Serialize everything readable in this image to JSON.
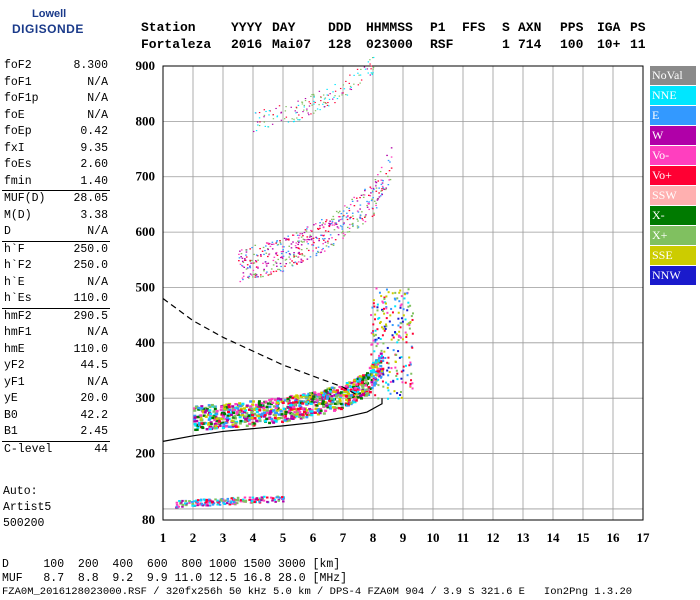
{
  "logo": {
    "line1": "Lowell",
    "line2": "DIGISONDE"
  },
  "header": {
    "labels": [
      "Station",
      "YYYY",
      "DAY",
      "DDD",
      "HHMMSS",
      "P1",
      "FFS",
      "S",
      "AXN",
      "PPS",
      "IGA",
      "PS"
    ],
    "values": [
      "Fortaleza",
      "2016",
      "Mai07",
      "128",
      "023000",
      "RSF",
      "1",
      "714",
      "100",
      "10+",
      "11"
    ]
  },
  "params": [
    {
      "k": "foF2",
      "v": "8.300"
    },
    {
      "k": "foF1",
      "v": "N/A"
    },
    {
      "k": "foF1p",
      "v": "N/A"
    },
    {
      "k": "foE",
      "v": "N/A"
    },
    {
      "k": "foEp",
      "v": "0.42"
    },
    {
      "k": "fxI",
      "v": "9.35"
    },
    {
      "k": "foEs",
      "v": "2.60"
    },
    {
      "k": "fmin",
      "v": "1.40"
    },
    {
      "k": "MUF(D)",
      "v": "28.05",
      "sep": true
    },
    {
      "k": "M(D)",
      "v": "3.38"
    },
    {
      "k": "D",
      "v": "N/A"
    },
    {
      "k": "h`F",
      "v": "250.0",
      "sep": true
    },
    {
      "k": "h`F2",
      "v": "250.0"
    },
    {
      "k": "h`E",
      "v": "N/A"
    },
    {
      "k": "h`Es",
      "v": "110.0"
    },
    {
      "k": "hmF2",
      "v": "290.5",
      "sep": true
    },
    {
      "k": "hmF1",
      "v": "N/A"
    },
    {
      "k": "hmE",
      "v": "110.0"
    },
    {
      "k": "yF2",
      "v": "44.5"
    },
    {
      "k": "yF1",
      "v": "N/A"
    },
    {
      "k": "yE",
      "v": "20.0"
    },
    {
      "k": "B0",
      "v": "42.2"
    },
    {
      "k": "B1",
      "v": "2.45"
    },
    {
      "k": "C-level",
      "v": "44",
      "sep": true
    }
  ],
  "auto": {
    "line1": "Auto:",
    "line2": "Artist5",
    "line3": "500200"
  },
  "legend": [
    {
      "name": "NoVal",
      "color": "#8a8a8a"
    },
    {
      "name": "NNE",
      "color": "#00e6ff"
    },
    {
      "name": "E",
      "color": "#3399ff"
    },
    {
      "name": "W",
      "color": "#b000a8"
    },
    {
      "name": "Vo-",
      "color": "#ff3fbf"
    },
    {
      "name": "Vo+",
      "color": "#ff0033"
    },
    {
      "name": "SSW",
      "color": "#ffb0b0"
    },
    {
      "name": "X-",
      "color": "#007a00"
    },
    {
      "name": "X+",
      "color": "#80c060"
    },
    {
      "name": "SSE",
      "color": "#cccc00"
    },
    {
      "name": "NNW",
      "color": "#1a1acc"
    }
  ],
  "footer": {
    "d_row": "D     100  200  400  600  800 1000 1500 3000 [km]",
    "muf_row": "MUF   8.7  8.8  9.2  9.9 11.0 12.5 16.8 28.0 [MHz]",
    "file_row": "FZA0M_2016128023000.RSF / 320fx256h 50 kHz 5.0 km / DPS-4 FZA0M 904 / 3.9 S 321.6 E   Ion2Png 1.3.20"
  },
  "chart_data": {
    "type": "scatter",
    "xlim": [
      1,
      17
    ],
    "ylim": [
      80,
      900
    ],
    "x_ticks": [
      1,
      2,
      3,
      4,
      5,
      6,
      7,
      8,
      9,
      10,
      11,
      12,
      13,
      14,
      15,
      16,
      17
    ],
    "y_ticks": [
      80,
      100,
      200,
      300,
      400,
      500,
      600,
      700,
      800,
      900
    ],
    "y_tick_labels": [
      "80",
      "",
      "200",
      "300",
      "400",
      "500",
      "600",
      "700",
      "800",
      "900"
    ],
    "grid": true,
    "traces": [
      {
        "name": "F2 trace",
        "x": [
          2.0,
          3.0,
          4.0,
          5.0,
          6.0,
          7.0,
          7.8,
          8.3
        ],
        "y": [
          265,
          270,
          275,
          282,
          292,
          305,
          330,
          370
        ]
      },
      {
        "name": "2F trace",
        "x": [
          3.5,
          5.0,
          6.5,
          8.0,
          8.6
        ],
        "y": [
          540,
          560,
          600,
          660,
          730
        ]
      },
      {
        "name": "3F trace",
        "x": [
          4.0,
          5.5,
          7.0,
          8.0
        ],
        "y": [
          800,
          820,
          860,
          900
        ]
      },
      {
        "name": "Es trace",
        "x": [
          1.4,
          2.0,
          3.0,
          4.0,
          5.0
        ],
        "y": [
          110,
          112,
          115,
          118,
          120
        ]
      }
    ],
    "profile_line": {
      "x": [
        1.0,
        2.0,
        3.0,
        4.0,
        5.0,
        6.0,
        7.0,
        7.8,
        8.3,
        8.3
      ],
      "y": [
        222,
        232,
        240,
        245,
        250,
        256,
        265,
        275,
        290,
        300
      ]
    },
    "dashed_line": {
      "x": [
        1.0,
        2.0,
        3.0,
        4.0,
        5.0,
        6.0,
        7.0,
        7.5
      ],
      "y": [
        480,
        440,
        410,
        385,
        360,
        340,
        320,
        305
      ]
    }
  }
}
